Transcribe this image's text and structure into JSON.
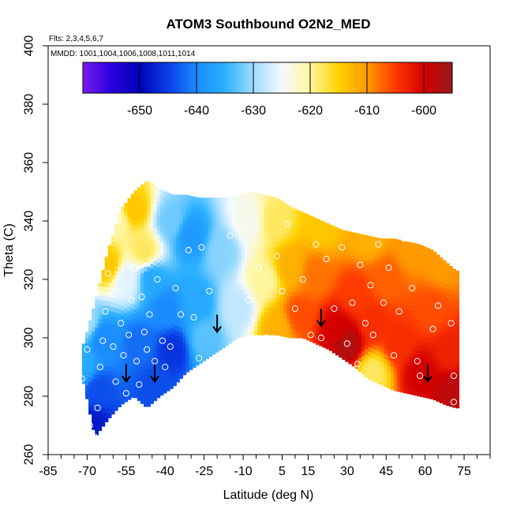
{
  "chart_data": {
    "type": "heatmap",
    "title": "ATOM3 Southbound O2N2_MED",
    "annotations": {
      "flights": "Flts: 2,3,4,5,6,7",
      "dates": "MMDD: 1001,1004,1006,1008,1011,1014"
    },
    "xlabel": "Latitude (deg N)",
    "ylabel": "Theta (C)",
    "xlim": [
      -85,
      85
    ],
    "ylim": [
      260,
      400
    ],
    "x_ticks": [
      -85,
      -70,
      -55,
      -40,
      -25,
      -10,
      5,
      15,
      30,
      45,
      60,
      75
    ],
    "x_minor_ticks": [
      -80,
      -75,
      -65,
      -60,
      -50,
      -45,
      -35,
      -30,
      -20,
      -15,
      -5,
      0,
      10,
      20,
      25,
      35,
      40,
      50,
      55,
      65,
      70,
      80,
      85
    ],
    "y_ticks": [
      260,
      280,
      300,
      320,
      340,
      360,
      380,
      400
    ],
    "colorbar": {
      "range": [
        -660,
        -595
      ],
      "ticks": [
        -650,
        -640,
        -630,
        -620,
        -610,
        -600
      ],
      "colors": [
        "#7a1cf0",
        "#2a00e0",
        "#0000b8",
        "#0a3fe6",
        "#1a8cff",
        "#2bb0ff",
        "#9fdcff",
        "#f4f9ff",
        "#fff6a0",
        "#ffd200",
        "#ff9a00",
        "#ff3a00",
        "#d40000",
        "#9a1a1a"
      ]
    },
    "field_bounds": {
      "lat": [
        -72,
        -67,
        -62,
        -57,
        -52,
        -47,
        -42,
        -37,
        -32,
        -27,
        -22,
        -17,
        -12,
        -7,
        -2,
        3,
        8,
        13,
        18,
        23,
        28,
        33,
        38,
        43,
        48,
        53,
        58,
        63,
        68,
        72
      ],
      "theta_bottom": [
        287,
        266,
        272,
        277,
        280,
        276,
        280,
        283,
        288,
        291,
        294,
        297,
        300,
        301,
        301,
        301,
        300,
        300,
        298,
        296,
        293,
        290,
        286,
        284,
        282,
        281,
        280,
        279,
        277,
        276
      ],
      "theta_top": [
        296,
        312,
        330,
        344,
        350,
        354,
        351,
        349,
        349,
        348,
        348,
        348,
        349,
        350,
        349,
        348,
        345,
        343,
        341,
        339,
        337,
        336,
        335,
        334,
        334,
        333,
        332,
        330,
        326,
        323
      ]
    },
    "field_anchors": [
      {
        "lat": -72,
        "theta": 290,
        "value": -636
      },
      {
        "lat": -68,
        "theta": 270,
        "value": -648
      },
      {
        "lat": -66,
        "theta": 282,
        "value": -644
      },
      {
        "lat": -70,
        "theta": 305,
        "value": -630
      },
      {
        "lat": -64,
        "theta": 300,
        "value": -640
      },
      {
        "lat": -62,
        "theta": 325,
        "value": -614
      },
      {
        "lat": -58,
        "theta": 340,
        "value": -620
      },
      {
        "lat": -55,
        "theta": 320,
        "value": -626
      },
      {
        "lat": -52,
        "theta": 344,
        "value": -614
      },
      {
        "lat": -48,
        "theta": 330,
        "value": -618
      },
      {
        "lat": -45,
        "theta": 320,
        "value": -636
      },
      {
        "lat": -40,
        "theta": 310,
        "value": -640
      },
      {
        "lat": -37,
        "theta": 296,
        "value": -646
      },
      {
        "lat": -50,
        "theta": 298,
        "value": -642
      },
      {
        "lat": -45,
        "theta": 283,
        "value": -644
      },
      {
        "lat": -38,
        "theta": 340,
        "value": -632
      },
      {
        "lat": -30,
        "theta": 335,
        "value": -638
      },
      {
        "lat": -28,
        "theta": 312,
        "value": -636
      },
      {
        "lat": -25,
        "theta": 300,
        "value": -633
      },
      {
        "lat": -18,
        "theta": 330,
        "value": -631
      },
      {
        "lat": -12,
        "theta": 310,
        "value": -628
      },
      {
        "lat": -8,
        "theta": 340,
        "value": -624
      },
      {
        "lat": -2,
        "theta": 320,
        "value": -620
      },
      {
        "lat": 2,
        "theta": 340,
        "value": -618
      },
      {
        "lat": 3,
        "theta": 303,
        "value": -612
      },
      {
        "lat": 8,
        "theta": 325,
        "value": -612
      },
      {
        "lat": 12,
        "theta": 308,
        "value": -606
      },
      {
        "lat": 18,
        "theta": 322,
        "value": -608
      },
      {
        "lat": 20,
        "theta": 338,
        "value": -614
      },
      {
        "lat": 26,
        "theta": 303,
        "value": -600
      },
      {
        "lat": 30,
        "theta": 298,
        "value": -597
      },
      {
        "lat": 33,
        "theta": 315,
        "value": -605
      },
      {
        "lat": 38,
        "theta": 335,
        "value": -612
      },
      {
        "lat": 40,
        "theta": 305,
        "value": -604
      },
      {
        "lat": 40,
        "theta": 288,
        "value": -618
      },
      {
        "lat": 45,
        "theta": 320,
        "value": -607
      },
      {
        "lat": 50,
        "theta": 298,
        "value": -604
      },
      {
        "lat": 55,
        "theta": 330,
        "value": -610
      },
      {
        "lat": 58,
        "theta": 288,
        "value": -600
      },
      {
        "lat": 62,
        "theta": 310,
        "value": -606
      },
      {
        "lat": 66,
        "theta": 325,
        "value": -610
      },
      {
        "lat": 70,
        "theta": 295,
        "value": -603
      },
      {
        "lat": 71,
        "theta": 282,
        "value": -598
      }
    ],
    "observations": [
      {
        "lat": -72,
        "theta": 286
      },
      {
        "lat": -71,
        "theta": 278
      },
      {
        "lat": -70,
        "theta": 296
      },
      {
        "lat": -69,
        "theta": 270
      },
      {
        "lat": -67,
        "theta": 266
      },
      {
        "lat": -66,
        "theta": 276
      },
      {
        "lat": -65,
        "theta": 290
      },
      {
        "lat": -64,
        "theta": 299
      },
      {
        "lat": -63,
        "theta": 309
      },
      {
        "lat": -62,
        "theta": 322
      },
      {
        "lat": -61,
        "theta": 316
      },
      {
        "lat": -60,
        "theta": 297
      },
      {
        "lat": -59,
        "theta": 285
      },
      {
        "lat": -58,
        "theta": 340
      },
      {
        "lat": -57,
        "theta": 305
      },
      {
        "lat": -56,
        "theta": 294
      },
      {
        "lat": -55,
        "theta": 281
      },
      {
        "lat": -54,
        "theta": 301
      },
      {
        "lat": -53,
        "theta": 313
      },
      {
        "lat": -52,
        "theta": 324
      },
      {
        "lat": -51,
        "theta": 292
      },
      {
        "lat": -50,
        "theta": 284
      },
      {
        "lat": -49,
        "theta": 314
      },
      {
        "lat": -48,
        "theta": 302
      },
      {
        "lat": -47,
        "theta": 296
      },
      {
        "lat": -46,
        "theta": 308
      },
      {
        "lat": -44,
        "theta": 292
      },
      {
        "lat": -43,
        "theta": 320
      },
      {
        "lat": -41,
        "theta": 299
      },
      {
        "lat": -40,
        "theta": 290
      },
      {
        "lat": -38,
        "theta": 297
      },
      {
        "lat": -36,
        "theta": 317
      },
      {
        "lat": -34,
        "theta": 308
      },
      {
        "lat": -31,
        "theta": 330
      },
      {
        "lat": -29,
        "theta": 307
      },
      {
        "lat": -27,
        "theta": 293
      },
      {
        "lat": -26,
        "theta": 331
      },
      {
        "lat": -23,
        "theta": 316
      },
      {
        "lat": -15,
        "theta": 335
      },
      {
        "lat": -8,
        "theta": 313
      },
      {
        "lat": -5,
        "theta": 296
      },
      {
        "lat": -4,
        "theta": 324
      },
      {
        "lat": -1,
        "theta": 300
      },
      {
        "lat": 3,
        "theta": 328
      },
      {
        "lat": 5,
        "theta": 316
      },
      {
        "lat": 7,
        "theta": 339
      },
      {
        "lat": 10,
        "theta": 310
      },
      {
        "lat": 13,
        "theta": 320
      },
      {
        "lat": 16,
        "theta": 301
      },
      {
        "lat": 18,
        "theta": 332
      },
      {
        "lat": 20,
        "theta": 300
      },
      {
        "lat": 22,
        "theta": 327
      },
      {
        "lat": 25,
        "theta": 310
      },
      {
        "lat": 28,
        "theta": 331
      },
      {
        "lat": 30,
        "theta": 298
      },
      {
        "lat": 32,
        "theta": 312
      },
      {
        "lat": 34,
        "theta": 291
      },
      {
        "lat": 35,
        "theta": 325
      },
      {
        "lat": 37,
        "theta": 305
      },
      {
        "lat": 39,
        "theta": 318
      },
      {
        "lat": 40,
        "theta": 301
      },
      {
        "lat": 42,
        "theta": 332
      },
      {
        "lat": 44,
        "theta": 312
      },
      {
        "lat": 46,
        "theta": 324
      },
      {
        "lat": 48,
        "theta": 294
      },
      {
        "lat": 50,
        "theta": 309
      },
      {
        "lat": 52,
        "theta": 334
      },
      {
        "lat": 55,
        "theta": 317
      },
      {
        "lat": 57,
        "theta": 292
      },
      {
        "lat": 58,
        "theta": 287
      },
      {
        "lat": 59,
        "theta": 334
      },
      {
        "lat": 63,
        "theta": 303
      },
      {
        "lat": 65,
        "theta": 311
      },
      {
        "lat": 67,
        "theta": 329
      },
      {
        "lat": 70,
        "theta": 305
      },
      {
        "lat": 71,
        "theta": 287
      },
      {
        "lat": 71,
        "theta": 278
      }
    ],
    "arrows": [
      {
        "lat": -55,
        "theta": 285
      },
      {
        "lat": -44,
        "theta": 285
      },
      {
        "lat": -20,
        "theta": 302
      },
      {
        "lat": 20,
        "theta": 304
      },
      {
        "lat": 61,
        "theta": 285
      }
    ]
  }
}
